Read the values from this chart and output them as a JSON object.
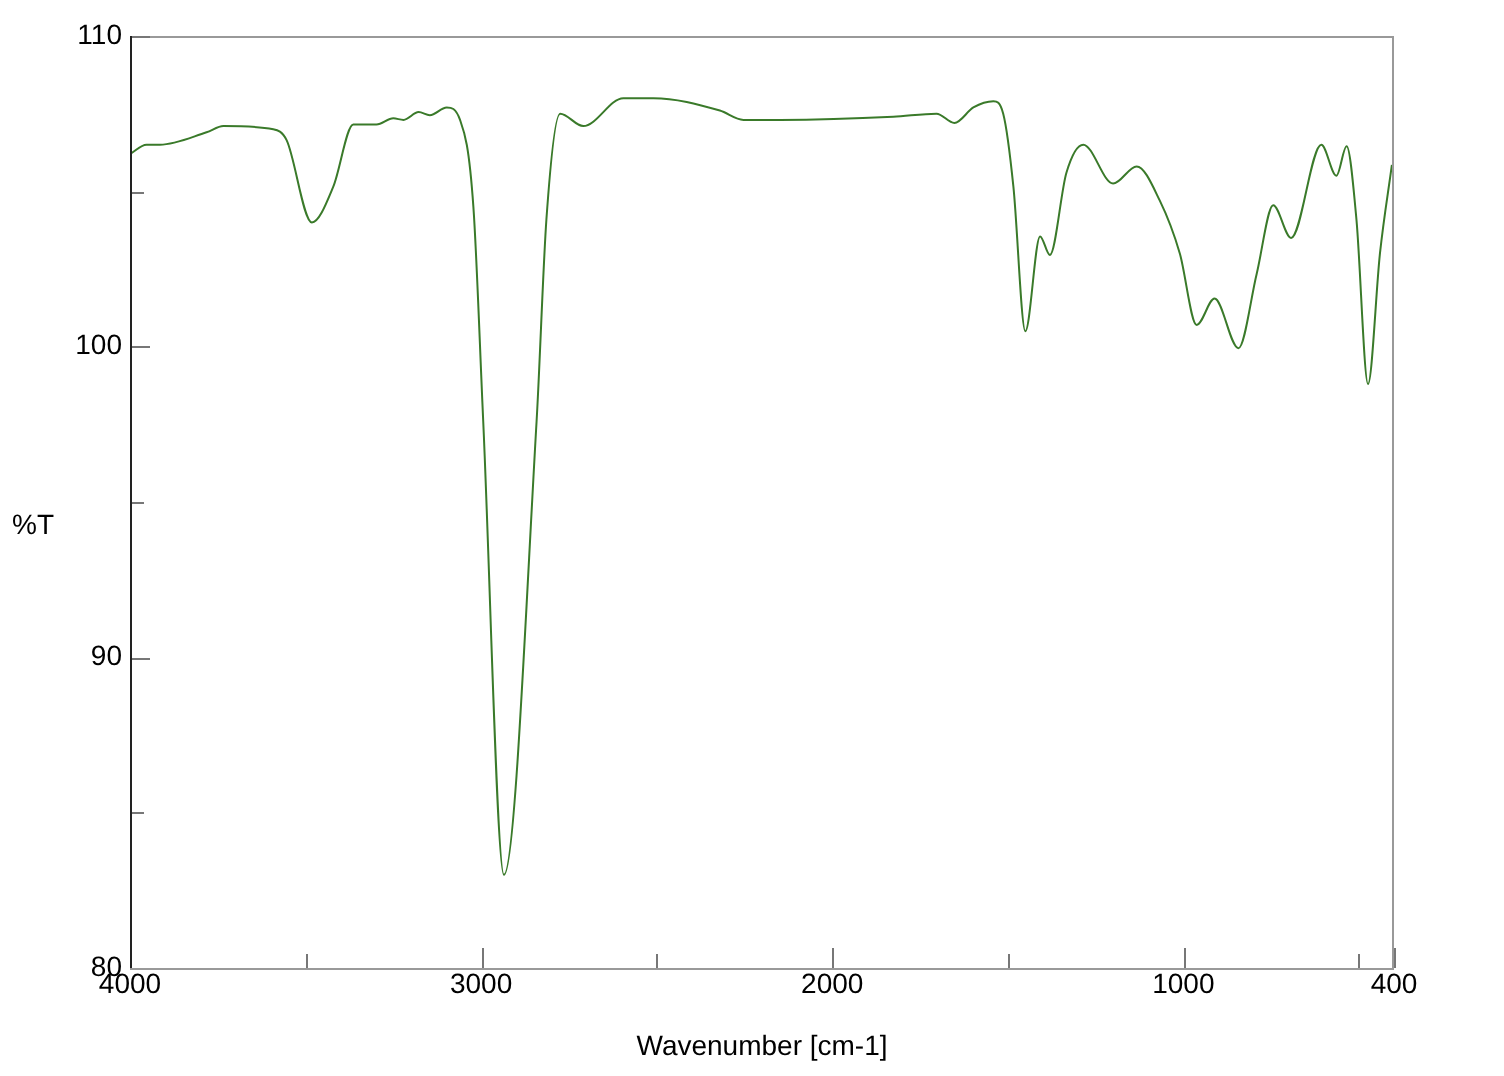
{
  "chart_data": {
    "type": "line",
    "xlabel": "Wavenumber [cm-1]",
    "ylabel": "%T",
    "xlim": [
      4000,
      400
    ],
    "ylim": [
      80,
      110
    ],
    "xticks": [
      4000,
      {
        "value": 3500,
        "label": null
      },
      3000,
      {
        "value": 2500,
        "label": null
      },
      2000,
      {
        "value": 1500,
        "label": null
      },
      1000,
      {
        "value": 500,
        "label": null
      },
      400
    ],
    "yticks": [
      80,
      {
        "value": 85,
        "label": null
      },
      90,
      {
        "value": 95,
        "label": null
      },
      100,
      {
        "value": 105,
        "label": null
      },
      110
    ],
    "grid": false,
    "legend": false,
    "marker": "none",
    "line_style": "solid",
    "series": [
      {
        "color": "#3a7a2a",
        "x": [
          4000,
          3953,
          3915,
          3782,
          3734,
          3592,
          3554,
          3482,
          3421,
          3364,
          3298,
          3250,
          3221,
          3178,
          3146,
          3098,
          3060,
          3022,
          2994,
          2935,
          2842,
          2814,
          2775,
          2709,
          2595,
          2509,
          2320,
          2253,
          2149,
          1826,
          1703,
          1652,
          1598,
          1541,
          1513,
          1484,
          1450,
          1408,
          1380,
          1333,
          1285,
          1200,
          1133,
          1067,
          1010,
          962,
          911,
          843,
          791,
          744,
          693,
          607,
          564,
          535,
          507,
          474,
          440,
          406
        ],
        "values": [
          106.2,
          106.5,
          106.5,
          106.9,
          107.1,
          107.0,
          106.65,
          104.0,
          105.15,
          107.15,
          107.15,
          107.35,
          107.3,
          107.55,
          107.45,
          107.7,
          107.3,
          104.5,
          97.6,
          83.0,
          97.6,
          104.1,
          107.5,
          107.1,
          108.0,
          108.0,
          107.6,
          107.3,
          107.3,
          107.4,
          107.5,
          107.2,
          107.7,
          107.9,
          107.5,
          105.15,
          100.5,
          103.55,
          102.95,
          105.6,
          106.5,
          105.25,
          105.8,
          104.7,
          103.0,
          100.7,
          101.55,
          99.95,
          102.35,
          104.55,
          103.5,
          106.5,
          105.5,
          106.45,
          104.1,
          98.8,
          103.0,
          105.85
        ]
      }
    ]
  }
}
